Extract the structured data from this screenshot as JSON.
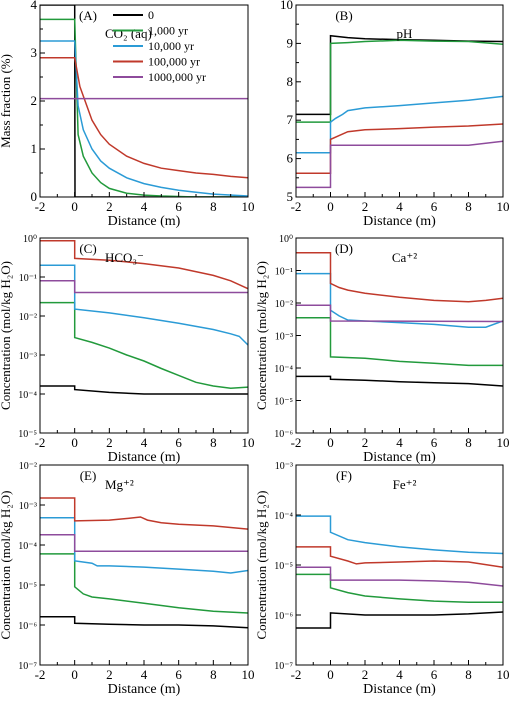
{
  "colors": {
    "0": "#000000",
    "1,000 yr": "#229a3c",
    "10,000 yr": "#2b9bd6",
    "100,000 yr": "#c0392b",
    "1000,000 yr": "#8e4b9c"
  },
  "chart_data": [
    {
      "type": "line",
      "panel": "(A)",
      "title": "CO₂ (aq)",
      "xlabel": "Distance (m)",
      "ylabel": "Mass fraction (%)",
      "yscale": "linear",
      "xlim": [
        -2,
        10
      ],
      "ylim": [
        0,
        4
      ],
      "xticks": [
        "-2",
        "0",
        "2",
        "4",
        "6",
        "8",
        "10"
      ],
      "yticks": [
        "0",
        "1",
        "2",
        "3",
        "4"
      ],
      "legend": {
        "position": "top-right",
        "entries": [
          "0",
          "1,000 yr",
          "10,000 yr",
          "100,000 yr",
          "1000,000 yr"
        ]
      },
      "series": [
        {
          "name": "0",
          "x": [
            -2,
            0,
            0.02,
            10
          ],
          "y": [
            4.0,
            4.0,
            0.0,
            0.0
          ]
        },
        {
          "name": "1,000 yr",
          "x": [
            -2,
            0,
            0.2,
            0.5,
            1,
            1.5,
            2,
            3,
            4,
            5,
            6,
            7,
            8,
            10
          ],
          "y": [
            3.7,
            3.7,
            1.3,
            0.85,
            0.5,
            0.3,
            0.18,
            0.08,
            0.04,
            0.02,
            0.01,
            0.0,
            0.0,
            0.0
          ]
        },
        {
          "name": "10,000 yr",
          "x": [
            -2,
            0,
            0.2,
            0.5,
            1,
            1.5,
            2,
            3,
            4,
            5,
            6,
            7,
            8,
            10
          ],
          "y": [
            3.25,
            3.25,
            1.9,
            1.4,
            1.0,
            0.75,
            0.6,
            0.4,
            0.28,
            0.2,
            0.14,
            0.1,
            0.06,
            0.02
          ]
        },
        {
          "name": "100,000 yr",
          "x": [
            -2,
            0,
            0.3,
            0.7,
            1,
            1.5,
            2,
            3,
            4,
            5,
            6,
            7,
            8,
            9,
            10
          ],
          "y": [
            2.9,
            2.9,
            2.3,
            1.9,
            1.6,
            1.3,
            1.1,
            0.85,
            0.7,
            0.6,
            0.55,
            0.5,
            0.47,
            0.43,
            0.4
          ]
        },
        {
          "name": "1000,000 yr",
          "x": [
            -2,
            10
          ],
          "y": [
            2.05,
            2.05
          ]
        }
      ]
    },
    {
      "type": "line",
      "panel": "(B)",
      "title": "pH",
      "xlabel": "Distance (m)",
      "ylabel": "",
      "yscale": "linear",
      "xlim": [
        -2,
        10
      ],
      "ylim": [
        5,
        10
      ],
      "xticks": [
        "-2",
        "0",
        "2",
        "4",
        "6",
        "8",
        "10"
      ],
      "yticks": [
        "5",
        "6",
        "7",
        "8",
        "9",
        "10"
      ],
      "series": [
        {
          "name": "0",
          "x": [
            -2,
            0,
            0,
            1,
            2,
            4,
            6,
            8,
            10
          ],
          "y": [
            7.15,
            7.15,
            9.2,
            9.15,
            9.12,
            9.1,
            9.08,
            9.06,
            9.05
          ]
        },
        {
          "name": "1,000 yr",
          "x": [
            -2,
            0,
            0,
            1,
            2,
            4,
            6,
            8,
            10
          ],
          "y": [
            6.95,
            6.95,
            9.0,
            9.02,
            9.05,
            9.08,
            9.06,
            9.05,
            8.98
          ]
        },
        {
          "name": "10,000 yr",
          "x": [
            -2,
            0,
            0,
            0.3,
            0.7,
            1,
            2,
            4,
            6,
            8,
            10
          ],
          "y": [
            6.15,
            6.15,
            6.95,
            7.05,
            7.15,
            7.25,
            7.32,
            7.38,
            7.45,
            7.52,
            7.62
          ]
        },
        {
          "name": "100,000 yr",
          "x": [
            -2,
            0,
            0,
            0.5,
            1,
            2,
            4,
            6,
            8,
            10
          ],
          "y": [
            5.62,
            5.62,
            6.5,
            6.6,
            6.7,
            6.75,
            6.78,
            6.82,
            6.85,
            6.9
          ]
        },
        {
          "name": "1000,000 yr",
          "x": [
            -2,
            0,
            0,
            2,
            4,
            6,
            8,
            10
          ],
          "y": [
            5.25,
            5.25,
            6.35,
            6.35,
            6.35,
            6.35,
            6.35,
            6.45
          ]
        }
      ]
    },
    {
      "type": "line",
      "panel": "(C)",
      "title": "HCO₃⁻",
      "xlabel": "Distance (m)",
      "ylabel": "Concentration (mol/kg H₂O)",
      "yscale": "log",
      "xlim": [
        -2,
        10
      ],
      "ylim": [
        1e-05,
        1
      ],
      "xticks": [
        "-2",
        "0",
        "2",
        "4",
        "6",
        "8",
        "10"
      ],
      "yticks": [
        "10⁻⁵",
        "10⁻⁴",
        "10⁻³",
        "10⁻²",
        "10⁻¹",
        "10⁰"
      ],
      "series": [
        {
          "name": "0",
          "x": [
            -2,
            0,
            0,
            2,
            4,
            6,
            8,
            10
          ],
          "y": [
            0.00016,
            0.00016,
            0.00013,
            0.00011,
            0.0001,
            0.0001,
            0.0001,
            0.0001
          ]
        },
        {
          "name": "1,000 yr",
          "x": [
            -2,
            0,
            0,
            1,
            2,
            3,
            4,
            5,
            6,
            7,
            8,
            9,
            10
          ],
          "y": [
            0.022,
            0.022,
            0.0028,
            0.0021,
            0.0015,
            0.001,
            0.0007,
            0.00045,
            0.0003,
            0.0002,
            0.00016,
            0.00014,
            0.00015
          ]
        },
        {
          "name": "10,000 yr",
          "x": [
            -2,
            0,
            0,
            2,
            4,
            6,
            8,
            9,
            9.5,
            10
          ],
          "y": [
            0.2,
            0.2,
            0.015,
            0.012,
            0.009,
            0.0065,
            0.0045,
            0.0035,
            0.003,
            0.0018
          ]
        },
        {
          "name": "100,000 yr",
          "x": [
            -2,
            0,
            0,
            2,
            4,
            6,
            8,
            9,
            10
          ],
          "y": [
            0.85,
            0.85,
            0.3,
            0.27,
            0.22,
            0.17,
            0.11,
            0.08,
            0.05
          ]
        },
        {
          "name": "1000,000 yr",
          "x": [
            -2,
            0,
            0,
            10
          ],
          "y": [
            0.08,
            0.08,
            0.04,
            0.04
          ]
        }
      ]
    },
    {
      "type": "line",
      "panel": "(D)",
      "title": "Ca⁺²",
      "xlabel": "Distance (m)",
      "ylabel": "Concentration (mol/kg H₂O)",
      "yscale": "log",
      "xlim": [
        -2,
        10
      ],
      "ylim": [
        1e-06,
        1
      ],
      "xticks": [
        "-2",
        "0",
        "2",
        "4",
        "6",
        "8",
        "10"
      ],
      "yticks": [
        "10⁻⁶",
        "10⁻⁵",
        "10⁻⁴",
        "10⁻³",
        "10⁻²",
        "10⁻¹",
        "10⁰"
      ],
      "series": [
        {
          "name": "0",
          "x": [
            -2,
            0,
            0,
            2,
            4,
            6,
            8,
            10
          ],
          "y": [
            5.5e-05,
            5.5e-05,
            4.5e-05,
            4.2e-05,
            3.8e-05,
            3.5e-05,
            3.3e-05,
            2.8e-05
          ]
        },
        {
          "name": "1,000 yr",
          "x": [
            -2,
            0,
            0,
            2,
            4,
            6,
            8,
            10
          ],
          "y": [
            0.0035,
            0.0035,
            0.00022,
            0.0002,
            0.00016,
            0.00014,
            0.00012,
            0.00012
          ]
        },
        {
          "name": "10,000 yr",
          "x": [
            -2,
            0,
            0,
            0.5,
            1,
            2,
            4,
            6,
            8,
            9,
            10
          ],
          "y": [
            0.08,
            0.08,
            0.006,
            0.004,
            0.003,
            0.0028,
            0.0025,
            0.0022,
            0.0018,
            0.0018,
            0.0028
          ]
        },
        {
          "name": "100,000 yr",
          "x": [
            -2,
            0,
            0,
            0.5,
            1,
            2,
            4,
            6,
            8,
            9,
            10
          ],
          "y": [
            0.35,
            0.35,
            0.04,
            0.03,
            0.025,
            0.02,
            0.015,
            0.012,
            0.011,
            0.012,
            0.014
          ]
        },
        {
          "name": "1000,000 yr",
          "x": [
            -2,
            0,
            0,
            10
          ],
          "y": [
            0.0085,
            0.0085,
            0.0028,
            0.0027
          ]
        }
      ]
    },
    {
      "type": "line",
      "panel": "(E)",
      "title": "Mg⁺²",
      "xlabel": "Distance (m)",
      "ylabel": "Concentration (mol/kg H₂O)",
      "yscale": "log",
      "xlim": [
        -2,
        10
      ],
      "ylim": [
        1e-07,
        0.01
      ],
      "xticks": [
        "-2",
        "0",
        "2",
        "4",
        "6",
        "8",
        "10"
      ],
      "yticks": [
        "10⁻⁷",
        "10⁻⁶",
        "10⁻⁵",
        "10⁻⁴",
        "10⁻³",
        "10⁻²"
      ],
      "series": [
        {
          "name": "0",
          "x": [
            -2,
            0,
            0,
            2,
            4,
            6,
            8,
            10
          ],
          "y": [
            1.6e-06,
            1.6e-06,
            1.1e-06,
            1.05e-06,
            1e-06,
            1e-06,
            9.5e-07,
            8.5e-07
          ]
        },
        {
          "name": "1,000 yr",
          "x": [
            -2,
            0,
            0,
            0.5,
            1,
            2,
            4,
            6,
            8,
            10
          ],
          "y": [
            6e-05,
            6e-05,
            9e-06,
            6e-06,
            5e-06,
            4.5e-06,
            3.5e-06,
            2.7e-06,
            2.2e-06,
            2e-06
          ]
        },
        {
          "name": "10,000 yr",
          "x": [
            -2,
            0,
            0,
            1,
            1.3,
            2,
            4,
            6,
            8,
            9,
            10
          ],
          "y": [
            0.00048,
            0.00048,
            4e-05,
            3.5e-05,
            3e-05,
            3e-05,
            2.8e-05,
            2.5e-05,
            2.2e-05,
            2e-05,
            2.3e-05
          ]
        },
        {
          "name": "100,000 yr",
          "x": [
            -2,
            0,
            0,
            2,
            3,
            3.8,
            4.2,
            5,
            6,
            8,
            10
          ],
          "y": [
            0.0015,
            0.0015,
            0.0004,
            0.00042,
            0.00046,
            0.0005,
            0.00042,
            0.00036,
            0.00033,
            0.0003,
            0.00025
          ]
        },
        {
          "name": "1000,000 yr",
          "x": [
            -2,
            0,
            0,
            10
          ],
          "y": [
            0.00018,
            0.00018,
            7e-05,
            7e-05
          ]
        }
      ]
    },
    {
      "type": "line",
      "panel": "(F)",
      "title": "Fe⁺²",
      "xlabel": "Distance (m)",
      "ylabel": "Concentration (mol/kg H₂O)",
      "yscale": "log",
      "xlim": [
        -2,
        10
      ],
      "ylim": [
        1e-07,
        0.001
      ],
      "xticks": [
        "-2",
        "0",
        "2",
        "4",
        "6",
        "8",
        "10"
      ],
      "yticks": [
        "10⁻⁷",
        "10⁻⁶",
        "10⁻⁵",
        "10⁻⁴",
        "10⁻³"
      ],
      "series": [
        {
          "name": "0",
          "x": [
            -2,
            0,
            0,
            2,
            4,
            6,
            8,
            10
          ],
          "y": [
            5.5e-07,
            5.5e-07,
            1.1e-06,
            1e-06,
            1e-06,
            1e-06,
            1.05e-06,
            1.15e-06
          ]
        },
        {
          "name": "1,000 yr",
          "x": [
            -2,
            0,
            0,
            1,
            2,
            4,
            6,
            8,
            10
          ],
          "y": [
            6.5e-06,
            6.5e-06,
            3.5e-06,
            2.8e-06,
            2.4e-06,
            2.1e-06,
            1.9e-06,
            1.8e-06,
            1.8e-06
          ]
        },
        {
          "name": "10,000 yr",
          "x": [
            -2,
            0,
            0,
            1,
            2,
            4,
            6,
            8,
            10
          ],
          "y": [
            9.5e-05,
            9.5e-05,
            4.5e-05,
            3.2e-05,
            2.8e-05,
            2.3e-05,
            2e-05,
            1.8e-05,
            1.7e-05
          ]
        },
        {
          "name": "100,000 yr",
          "x": [
            -2,
            0,
            0,
            1,
            1.5,
            2,
            4,
            6,
            8,
            10
          ],
          "y": [
            2.3e-05,
            2.3e-05,
            1.5e-05,
            1.2e-05,
            1.05e-05,
            1.1e-05,
            1.15e-05,
            1.2e-05,
            1.15e-05,
            9e-06
          ]
        },
        {
          "name": "1000,000 yr",
          "x": [
            -2,
            0,
            0,
            2,
            4,
            6,
            8,
            10
          ],
          "y": [
            9e-06,
            9e-06,
            5e-06,
            5e-06,
            5e-06,
            4.8e-06,
            4.5e-06,
            3.8e-06
          ]
        }
      ]
    }
  ]
}
